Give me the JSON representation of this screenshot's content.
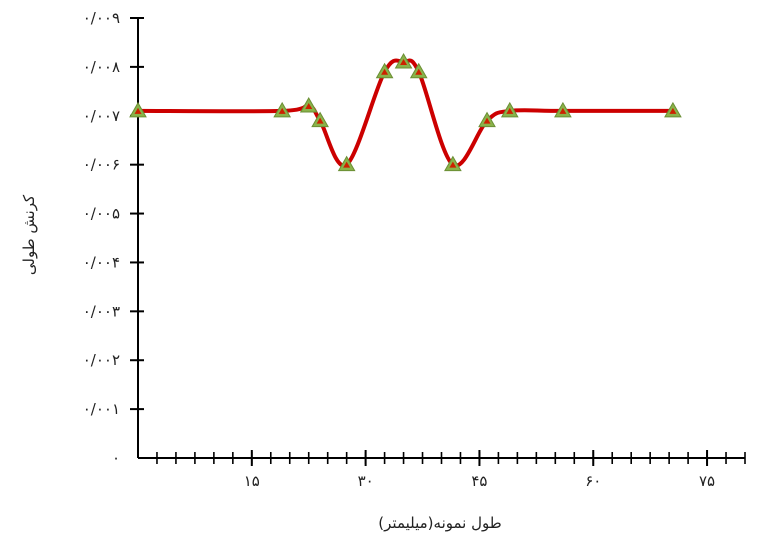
{
  "chart_data": {
    "type": "line",
    "title": "",
    "xlabel": "طول نمونه(میلیمتر)",
    "ylabel": "کرنش طولی",
    "xlim": [
      0,
      80
    ],
    "ylim": [
      0,
      0.009
    ],
    "grid": false,
    "x_ticks": [
      15,
      30,
      45,
      60,
      75
    ],
    "x_tick_labels": [
      "۱۵",
      "۳۰",
      "۴۵",
      "۶۰",
      "۷۵"
    ],
    "x_minor_tick_step": 2.5,
    "y_ticks": [
      0,
      0.001,
      0.002,
      0.003,
      0.004,
      0.005,
      0.006,
      0.007,
      0.008,
      0.009
    ],
    "y_tick_labels": [
      "۰",
      "۰/۰۰۱",
      "۰/۰۰۲",
      "۰/۰۰۳",
      "۰/۰۰۴",
      "۰/۰۰۵",
      "۰/۰۰۶",
      "۰/۰۰۷",
      "۰/۰۰۸",
      "۰/۰۰۹"
    ],
    "line_color": "#cc0000",
    "marker_fill": "#8ab34a",
    "marker_inner": "#cc2200",
    "series": [
      {
        "points": [
          [
            0,
            0.0071
          ],
          [
            19,
            0.0071
          ],
          [
            22.5,
            0.0072
          ],
          [
            24,
            0.0069
          ],
          [
            27.5,
            0.006
          ],
          [
            32.5,
            0.0079
          ],
          [
            35,
            0.0081
          ],
          [
            37,
            0.0079
          ],
          [
            41.5,
            0.006
          ],
          [
            46,
            0.0069
          ],
          [
            49,
            0.0071
          ],
          [
            56,
            0.0071
          ],
          [
            70.5,
            0.0071
          ]
        ]
      }
    ]
  }
}
